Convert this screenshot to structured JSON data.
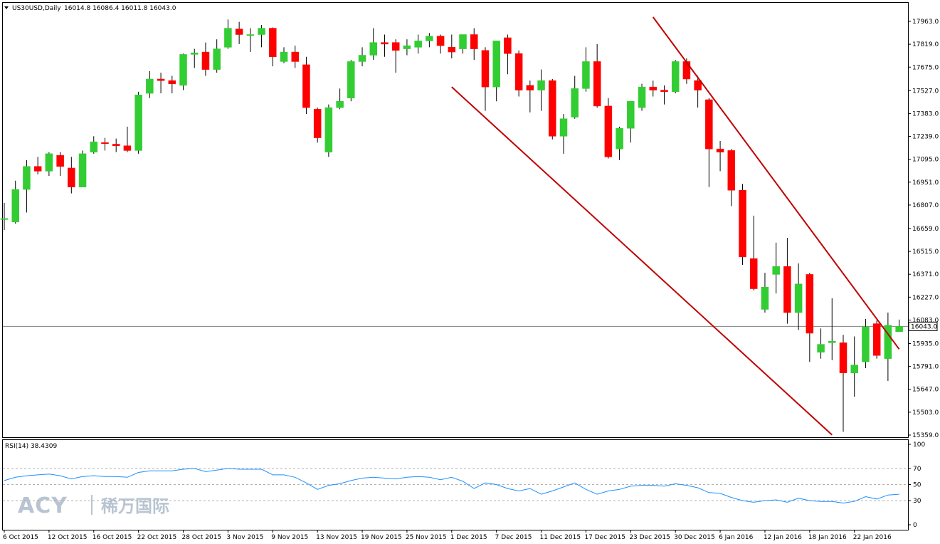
{
  "header": {
    "symbol": "US30USD,Daily",
    "ohlc": "16014.8 16086.4 16011.8 16043.0"
  },
  "rsi_header": "RSI(14) 38.4309",
  "watermark": {
    "latin": "ACY",
    "chinese": "稀万国际"
  },
  "colors": {
    "up": "#32cd32",
    "down": "#ff0000",
    "wick": "#000000",
    "trend": "#c00000",
    "rsi_line": "#1e90ff",
    "grid": "#000000",
    "bid_line": "#808080"
  },
  "chart_data": {
    "type": "candlestick",
    "title": "US30USD,Daily",
    "price_ticks": [
      "17963.0",
      "17819.0",
      "17675.0",
      "17527.0",
      "17383.0",
      "17239.0",
      "17095.0",
      "16951.0",
      "16807.0",
      "16659.0",
      "16515.0",
      "16371.0",
      "16227.0",
      "16083.0",
      "15935.0",
      "15791.0",
      "15647.0",
      "15503.0",
      "15359.0"
    ],
    "last_price": "16043.0",
    "x_labels": [
      {
        "i": 0,
        "text": "6 Oct 2015"
      },
      {
        "i": 4,
        "text": "12 Oct 2015"
      },
      {
        "i": 8,
        "text": "16 Oct 2015"
      },
      {
        "i": 12,
        "text": "22 Oct 2015"
      },
      {
        "i": 16,
        "text": "28 Oct 2015"
      },
      {
        "i": 20,
        "text": "3 Nov 2015"
      },
      {
        "i": 24,
        "text": "9 Nov 2015"
      },
      {
        "i": 28,
        "text": "13 Nov 2015"
      },
      {
        "i": 32,
        "text": "19 Nov 2015"
      },
      {
        "i": 36,
        "text": "25 Nov 2015"
      },
      {
        "i": 40,
        "text": "1 Dec 2015"
      },
      {
        "i": 44,
        "text": "7 Dec 2015"
      },
      {
        "i": 48,
        "text": "11 Dec 2015"
      },
      {
        "i": 52,
        "text": "17 Dec 2015"
      },
      {
        "i": 56,
        "text": "23 Dec 2015"
      },
      {
        "i": 60,
        "text": "30 Dec 2015"
      },
      {
        "i": 64,
        "text": "6 Jan 2016"
      },
      {
        "i": 68,
        "text": "12 Jan 2016"
      },
      {
        "i": 72,
        "text": "18 Jan 2016"
      },
      {
        "i": 76,
        "text": "22 Jan 2016"
      }
    ],
    "candles": [
      {
        "o": 16718,
        "h": 16820,
        "l": 16650,
        "c": 16722
      },
      {
        "o": 16700,
        "h": 16960,
        "l": 16690,
        "c": 16905
      },
      {
        "o": 16905,
        "h": 17090,
        "l": 16760,
        "c": 17050
      },
      {
        "o": 17050,
        "h": 17110,
        "l": 17000,
        "c": 17020
      },
      {
        "o": 17020,
        "h": 17140,
        "l": 16990,
        "c": 17130
      },
      {
        "o": 17120,
        "h": 17140,
        "l": 16990,
        "c": 17050
      },
      {
        "o": 17040,
        "h": 17110,
        "l": 16880,
        "c": 16920
      },
      {
        "o": 16920,
        "h": 17150,
        "l": 16920,
        "c": 17130
      },
      {
        "o": 17140,
        "h": 17240,
        "l": 17130,
        "c": 17205
      },
      {
        "o": 17200,
        "h": 17230,
        "l": 17150,
        "c": 17195
      },
      {
        "o": 17190,
        "h": 17225,
        "l": 17140,
        "c": 17180
      },
      {
        "o": 17180,
        "h": 17300,
        "l": 17140,
        "c": 17150
      },
      {
        "o": 17150,
        "h": 17520,
        "l": 17130,
        "c": 17500
      },
      {
        "o": 17510,
        "h": 17650,
        "l": 17480,
        "c": 17600
      },
      {
        "o": 17600,
        "h": 17640,
        "l": 17510,
        "c": 17590
      },
      {
        "o": 17590,
        "h": 17620,
        "l": 17510,
        "c": 17570
      },
      {
        "o": 17560,
        "h": 17760,
        "l": 17530,
        "c": 17755
      },
      {
        "o": 17755,
        "h": 17790,
        "l": 17670,
        "c": 17765
      },
      {
        "o": 17770,
        "h": 17830,
        "l": 17620,
        "c": 17660
      },
      {
        "o": 17660,
        "h": 17850,
        "l": 17640,
        "c": 17790
      },
      {
        "o": 17800,
        "h": 17975,
        "l": 17790,
        "c": 17920
      },
      {
        "o": 17915,
        "h": 17960,
        "l": 17820,
        "c": 17880
      },
      {
        "o": 17880,
        "h": 17920,
        "l": 17770,
        "c": 17880
      },
      {
        "o": 17880,
        "h": 17940,
        "l": 17800,
        "c": 17920
      },
      {
        "o": 17920,
        "h": 17925,
        "l": 17680,
        "c": 17740
      },
      {
        "o": 17710,
        "h": 17800,
        "l": 17700,
        "c": 17770
      },
      {
        "o": 17770,
        "h": 17810,
        "l": 17670,
        "c": 17710
      },
      {
        "o": 17690,
        "h": 17740,
        "l": 17380,
        "c": 17420
      },
      {
        "o": 17410,
        "h": 17420,
        "l": 17200,
        "c": 17230
      },
      {
        "o": 17140,
        "h": 17440,
        "l": 17110,
        "c": 17420
      },
      {
        "o": 17420,
        "h": 17540,
        "l": 17410,
        "c": 17460
      },
      {
        "o": 17480,
        "h": 17720,
        "l": 17460,
        "c": 17710
      },
      {
        "o": 17710,
        "h": 17800,
        "l": 17680,
        "c": 17750
      },
      {
        "o": 17750,
        "h": 17920,
        "l": 17720,
        "c": 17830
      },
      {
        "o": 17830,
        "h": 17880,
        "l": 17740,
        "c": 17820
      },
      {
        "o": 17830,
        "h": 17850,
        "l": 17640,
        "c": 17780
      },
      {
        "o": 17790,
        "h": 17850,
        "l": 17750,
        "c": 17810
      },
      {
        "o": 17800,
        "h": 17880,
        "l": 17760,
        "c": 17840
      },
      {
        "o": 17840,
        "h": 17890,
        "l": 17800,
        "c": 17870
      },
      {
        "o": 17870,
        "h": 17880,
        "l": 17760,
        "c": 17810
      },
      {
        "o": 17800,
        "h": 17880,
        "l": 17730,
        "c": 17770
      },
      {
        "o": 17790,
        "h": 17880,
        "l": 17760,
        "c": 17880
      },
      {
        "o": 17880,
        "h": 17920,
        "l": 17720,
        "c": 17790
      },
      {
        "o": 17780,
        "h": 17800,
        "l": 17400,
        "c": 17550
      },
      {
        "o": 17550,
        "h": 17840,
        "l": 17460,
        "c": 17840
      },
      {
        "o": 17860,
        "h": 17880,
        "l": 17630,
        "c": 17760
      },
      {
        "o": 17760,
        "h": 17780,
        "l": 17490,
        "c": 17530
      },
      {
        "o": 17560,
        "h": 17590,
        "l": 17390,
        "c": 17530
      },
      {
        "o": 17530,
        "h": 17660,
        "l": 17400,
        "c": 17590
      },
      {
        "o": 17590,
        "h": 17600,
        "l": 17220,
        "c": 17240
      },
      {
        "o": 17240,
        "h": 17380,
        "l": 17130,
        "c": 17350
      },
      {
        "o": 17360,
        "h": 17620,
        "l": 17350,
        "c": 17540
      },
      {
        "o": 17540,
        "h": 17800,
        "l": 17520,
        "c": 17710
      },
      {
        "o": 17710,
        "h": 17820,
        "l": 17420,
        "c": 17430
      },
      {
        "o": 17430,
        "h": 17480,
        "l": 17100,
        "c": 17110
      },
      {
        "o": 17160,
        "h": 17300,
        "l": 17090,
        "c": 17290
      },
      {
        "o": 17290,
        "h": 17460,
        "l": 17200,
        "c": 17460
      },
      {
        "o": 17420,
        "h": 17570,
        "l": 17400,
        "c": 17550
      },
      {
        "o": 17550,
        "h": 17590,
        "l": 17490,
        "c": 17530
      },
      {
        "o": 17530,
        "h": 17560,
        "l": 17440,
        "c": 17520
      },
      {
        "o": 17520,
        "h": 17720,
        "l": 17510,
        "c": 17710
      },
      {
        "o": 17710,
        "h": 17730,
        "l": 17570,
        "c": 17600
      },
      {
        "o": 17590,
        "h": 17620,
        "l": 17420,
        "c": 17530
      },
      {
        "o": 17470,
        "h": 17480,
        "l": 16920,
        "c": 17160
      },
      {
        "o": 17160,
        "h": 17210,
        "l": 17020,
        "c": 17140
      },
      {
        "o": 17150,
        "h": 17160,
        "l": 16800,
        "c": 16900
      },
      {
        "o": 16900,
        "h": 16940,
        "l": 16430,
        "c": 16480
      },
      {
        "o": 16470,
        "h": 16740,
        "l": 16270,
        "c": 16280
      },
      {
        "o": 16150,
        "h": 16380,
        "l": 16130,
        "c": 16290
      },
      {
        "o": 16370,
        "h": 16570,
        "l": 16250,
        "c": 16420
      },
      {
        "o": 16420,
        "h": 16600,
        "l": 16060,
        "c": 16130
      },
      {
        "o": 16130,
        "h": 16440,
        "l": 16020,
        "c": 16310
      },
      {
        "o": 16370,
        "h": 16380,
        "l": 15820,
        "c": 16000
      },
      {
        "o": 15880,
        "h": 16030,
        "l": 15840,
        "c": 15930
      },
      {
        "o": 15940,
        "h": 16220,
        "l": 15830,
        "c": 15950
      },
      {
        "o": 15940,
        "h": 15990,
        "l": 15380,
        "c": 15750
      },
      {
        "o": 15750,
        "h": 15980,
        "l": 15600,
        "c": 15800
      },
      {
        "o": 15820,
        "h": 16090,
        "l": 15780,
        "c": 16040
      },
      {
        "o": 16060,
        "h": 16080,
        "l": 15840,
        "c": 15860
      },
      {
        "o": 15840,
        "h": 16130,
        "l": 15700,
        "c": 16050
      },
      {
        "o": 16010,
        "h": 16086,
        "l": 16010,
        "c": 16043
      }
    ],
    "trendlines": [
      {
        "x1": 40,
        "y1": 17550,
        "x2": 74,
        "y2": 15360
      },
      {
        "x1": 58,
        "y1": 17990,
        "x2": 80,
        "y2": 15900
      }
    ],
    "rsi": {
      "ylim": [
        0,
        100
      ],
      "ticks": [
        "100",
        "70",
        "50",
        "30",
        "0"
      ],
      "levels": [
        70,
        50,
        30
      ],
      "current": "38.4309",
      "values": [
        55,
        59,
        61,
        62,
        63,
        61,
        57,
        60,
        61,
        60,
        60,
        59,
        65,
        67,
        67,
        67,
        69,
        70,
        66,
        68,
        70,
        69,
        69,
        69,
        62,
        62,
        59,
        52,
        44,
        49,
        51,
        55,
        58,
        59,
        58,
        57,
        59,
        60,
        59,
        56,
        59,
        54,
        45,
        52,
        50,
        45,
        42,
        45,
        38,
        42,
        47,
        52,
        44,
        38,
        42,
        44,
        48,
        49,
        49,
        48,
        51,
        49,
        46,
        40,
        39,
        34,
        30,
        28,
        30,
        31,
        28,
        33,
        30,
        29,
        29,
        27,
        29,
        35,
        32,
        37,
        38
      ]
    }
  }
}
